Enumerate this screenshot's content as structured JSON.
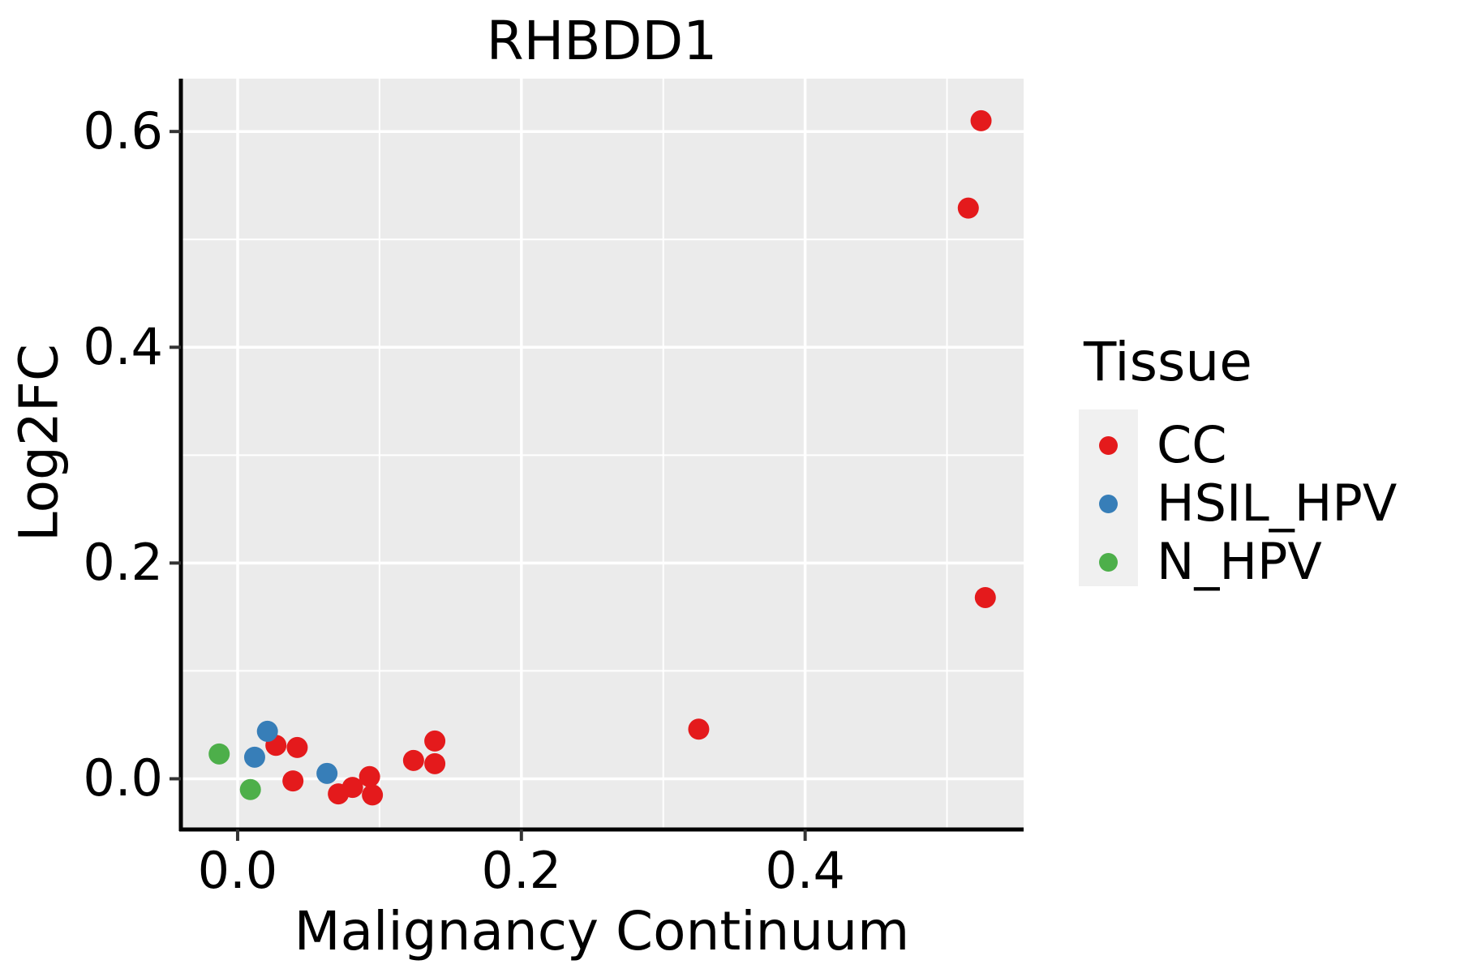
{
  "title": "RHBDD1",
  "legend": {
    "title": "Tissue",
    "items": [
      {
        "label": "CC",
        "color": "#E41A1C"
      },
      {
        "label": "HSIL_HPV",
        "color": "#377EB8"
      },
      {
        "label": "N_HPV",
        "color": "#4DAF4A"
      }
    ]
  },
  "chart_data": {
    "type": "scatter",
    "title": "RHBDD1",
    "xlabel": "Malignancy Continuum",
    "ylabel": "Log2FC",
    "xlim": [
      -0.04,
      0.554
    ],
    "ylim": [
      -0.047,
      0.649
    ],
    "x_major_ticks": [
      0.0,
      0.2,
      0.4
    ],
    "x_minor_ticks": [
      0.1,
      0.3,
      0.5
    ],
    "y_major_ticks": [
      0.0,
      0.2,
      0.4,
      0.6
    ],
    "y_minor_ticks": [
      0.1,
      0.3,
      0.5
    ],
    "x_tick_labels": [
      "0.0",
      "0.2",
      "0.4"
    ],
    "y_tick_labels": [
      "0.0",
      "0.2",
      "0.4",
      "0.6"
    ],
    "grid": true,
    "panel_background": "#EBEBEB",
    "grid_color": "#FFFFFF",
    "axis_color": "#000000",
    "tick_color": "#333333",
    "legend_position": "right",
    "point_radius": 13,
    "series": [
      {
        "name": "CC",
        "color": "#E41A1C",
        "points": [
          [
            0.027,
            0.031
          ],
          [
            0.042,
            0.029
          ],
          [
            0.039,
            -0.002
          ],
          [
            0.071,
            -0.014
          ],
          [
            0.081,
            -0.008
          ],
          [
            0.093,
            0.002
          ],
          [
            0.095,
            -0.015
          ],
          [
            0.124,
            0.017
          ],
          [
            0.139,
            0.035
          ],
          [
            0.139,
            0.014
          ],
          [
            0.325,
            0.046
          ],
          [
            0.515,
            0.529
          ],
          [
            0.524,
            0.61
          ],
          [
            0.527,
            0.168
          ]
        ]
      },
      {
        "name": "HSIL_HPV",
        "color": "#377EB8",
        "points": [
          [
            0.012,
            0.02
          ],
          [
            0.021,
            0.044
          ],
          [
            0.063,
            0.005
          ]
        ]
      },
      {
        "name": "N_HPV",
        "color": "#4DAF4A",
        "points": [
          [
            -0.013,
            0.023
          ],
          [
            0.009,
            -0.01
          ]
        ]
      }
    ]
  }
}
